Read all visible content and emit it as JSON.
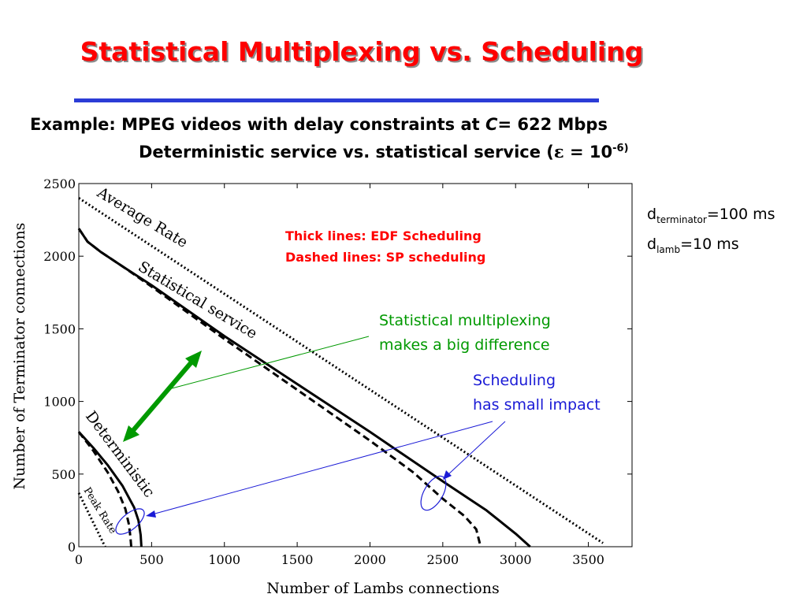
{
  "slide": {
    "title": "Statistical Multiplexing vs. Scheduling",
    "example_prefix": "Example: MPEG videos with delay constraints at ",
    "example_c": "C",
    "example_suffix": "= 622 Mbps",
    "sub_prefix": "Deterministic service vs. statistical service (",
    "sub_epsilon": "ε",
    "sub_middle": " = 10",
    "sub_exponent": "-6)"
  },
  "params": {
    "d1": "d",
    "d1_sub": "terminator",
    "d1_value": "=100 ms",
    "d2": "d",
    "d2_sub": "lamb",
    "d2_value": "=10 ms"
  },
  "notes": {
    "thick": "Thick lines: EDF Scheduling",
    "dashed": "Dashed lines: SP scheduling",
    "stat_line1": "Statistical multiplexing",
    "stat_line2": "makes a big difference",
    "sched_line1": "Scheduling",
    "sched_line2": "has small impact"
  },
  "colors": {
    "title": "#ff0000",
    "rule": "#2b3cd6",
    "green_note": "#009900",
    "blue_note": "#1a1ad6"
  },
  "chart_data": {
    "type": "line",
    "xlabel": "Number of Lambs connections",
    "ylabel": "Number of Terminator connections",
    "xlim": [
      0,
      3800
    ],
    "ylim": [
      0,
      2500
    ],
    "xticks": [
      0,
      500,
      1000,
      1500,
      2000,
      2500,
      3000,
      3500
    ],
    "yticks": [
      0,
      500,
      1000,
      1500,
      2000,
      2500
    ],
    "grid": false,
    "series": [
      {
        "name": "Average Rate",
        "style": "dotted",
        "points": [
          [
            0,
            2400
          ],
          [
            3600,
            25
          ]
        ]
      },
      {
        "name": "Statistical service",
        "style": "solid",
        "points": [
          [
            0,
            2190
          ],
          [
            60,
            2100
          ],
          [
            150,
            2030
          ],
          [
            300,
            1930
          ],
          [
            500,
            1800
          ],
          [
            1000,
            1450
          ],
          [
            1500,
            1120
          ],
          [
            2000,
            790
          ],
          [
            2500,
            450
          ],
          [
            2800,
            250
          ],
          [
            3000,
            90
          ],
          [
            3100,
            0
          ]
        ]
      },
      {
        "name": "Statistical service",
        "style": "dashed",
        "points": [
          [
            0,
            2190
          ],
          [
            60,
            2100
          ],
          [
            150,
            2030
          ],
          [
            300,
            1930
          ],
          [
            500,
            1790
          ],
          [
            1000,
            1430
          ],
          [
            1500,
            1080
          ],
          [
            2000,
            730
          ],
          [
            2300,
            510
          ],
          [
            2500,
            330
          ],
          [
            2650,
            210
          ],
          [
            2730,
            120
          ],
          [
            2760,
            0
          ]
        ]
      },
      {
        "name": "Deterministic",
        "style": "solid",
        "points": [
          [
            0,
            790
          ],
          [
            100,
            680
          ],
          [
            200,
            560
          ],
          [
            300,
            420
          ],
          [
            380,
            270
          ],
          [
            410,
            180
          ],
          [
            425,
            80
          ],
          [
            430,
            0
          ]
        ]
      },
      {
        "name": "Deterministic",
        "style": "dashed",
        "points": [
          [
            0,
            790
          ],
          [
            100,
            660
          ],
          [
            200,
            510
          ],
          [
            270,
            380
          ],
          [
            320,
            260
          ],
          [
            345,
            150
          ],
          [
            355,
            60
          ],
          [
            360,
            0
          ]
        ]
      },
      {
        "name": "Peak Rate",
        "style": "dotted",
        "points": [
          [
            0,
            370
          ],
          [
            180,
            0
          ]
        ]
      }
    ],
    "curve_labels": [
      "Average Rate",
      "Statistical service",
      "Deterministic",
      "Peak Rate"
    ]
  }
}
